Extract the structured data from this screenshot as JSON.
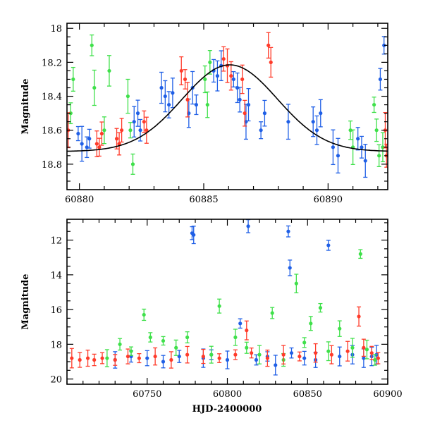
{
  "chart_data": [
    {
      "type": "scatter",
      "panel": "top",
      "xlabel": "",
      "ylabel": "Magnitude",
      "xlim": [
        60879.5,
        60892.4
      ],
      "ylim": [
        18.95,
        17.97
      ],
      "y_inverted": true,
      "xticks": [
        60880,
        60885,
        60890
      ],
      "yticks": [
        18,
        18.2,
        18.4,
        18.6,
        18.8
      ],
      "xtick_labels": [
        "60880",
        "60885",
        "60890"
      ],
      "ytick_labels": [
        "18",
        "18.2",
        "18.4",
        "18.6",
        "18.8"
      ],
      "grid": false,
      "legend": "none",
      "series_colors": {
        "blue": "#1f5fe6",
        "green": "#3fe04a",
        "red": "#ff3b2a",
        "model": "#000000"
      },
      "series": [
        {
          "color": "blue",
          "points": [
            [
              60879.95,
              18.62
            ],
            [
              60880.1,
              18.68
            ],
            [
              60880.3,
              18.7
            ],
            [
              60880.4,
              18.65
            ],
            [
              60882.2,
              18.55
            ],
            [
              60882.35,
              18.5
            ],
            [
              60882.45,
              18.6
            ],
            [
              60883.3,
              18.35
            ],
            [
              60883.45,
              18.4
            ],
            [
              60883.6,
              18.45
            ],
            [
              60883.75,
              18.38
            ],
            [
              60884.4,
              18.5
            ],
            [
              60884.55,
              18.35
            ],
            [
              60884.7,
              18.45
            ],
            [
              60885.4,
              18.25
            ],
            [
              60885.55,
              18.28
            ],
            [
              60885.7,
              18.22
            ],
            [
              60886.2,
              18.3
            ],
            [
              60886.35,
              18.35
            ],
            [
              60886.45,
              18.42
            ],
            [
              60886.7,
              18.55
            ],
            [
              60886.8,
              18.45
            ],
            [
              60887.3,
              18.6
            ],
            [
              60887.45,
              18.5
            ],
            [
              60888.4,
              18.55
            ],
            [
              60889.4,
              18.55
            ],
            [
              60889.55,
              18.6
            ],
            [
              60889.7,
              18.5
            ],
            [
              60890.2,
              18.7
            ],
            [
              60890.4,
              18.75
            ],
            [
              60891.2,
              18.65
            ],
            [
              60891.35,
              18.7
            ],
            [
              60891.5,
              18.78
            ],
            [
              60892.1,
              18.3
            ],
            [
              60892.25,
              18.1
            ]
          ]
        },
        {
          "color": "green",
          "points": [
            [
              60879.65,
              18.5
            ],
            [
              60879.75,
              18.3
            ],
            [
              60880.5,
              18.1
            ],
            [
              60880.6,
              18.35
            ],
            [
              60881.0,
              18.6
            ],
            [
              60881.2,
              18.25
            ],
            [
              60881.95,
              18.4
            ],
            [
              60882.05,
              18.6
            ],
            [
              60882.15,
              18.8
            ],
            [
              60885.05,
              18.3
            ],
            [
              60885.15,
              18.45
            ],
            [
              60885.25,
              18.2
            ],
            [
              60890.9,
              18.6
            ],
            [
              60891.0,
              18.7
            ],
            [
              60891.85,
              18.45
            ],
            [
              60891.95,
              18.6
            ],
            [
              60892.05,
              18.75
            ],
            [
              60892.2,
              18.7
            ]
          ]
        },
        {
          "color": "red",
          "points": [
            [
              60879.55,
              18.6
            ],
            [
              60880.7,
              18.68
            ],
            [
              60880.8,
              18.7
            ],
            [
              60880.9,
              18.62
            ],
            [
              60881.5,
              18.65
            ],
            [
              60881.6,
              18.68
            ],
            [
              60881.7,
              18.6
            ],
            [
              60882.6,
              18.55
            ],
            [
              60882.7,
              18.6
            ],
            [
              60884.1,
              18.25
            ],
            [
              60884.25,
              18.3
            ],
            [
              60884.35,
              18.42
            ],
            [
              60885.8,
              18.18
            ],
            [
              60885.95,
              18.22
            ],
            [
              60886.1,
              18.28
            ],
            [
              60886.55,
              18.3
            ],
            [
              60886.65,
              18.5
            ],
            [
              60887.6,
              18.1
            ],
            [
              60887.7,
              18.2
            ],
            [
              60892.3,
              18.6
            ],
            [
              60892.35,
              18.75
            ]
          ]
        },
        {
          "color": "model",
          "line": true,
          "center": 60886.05,
          "mag_peak": 18.215,
          "mag_base": 18.725,
          "width_days": 2.7
        }
      ]
    },
    {
      "type": "scatter",
      "panel": "bottom",
      "xlabel": "HJD-2400000",
      "ylabel": "Magnitude",
      "xlim": [
        60700,
        60900
      ],
      "ylim": [
        20.3,
        10.8
      ],
      "y_inverted": true,
      "xticks": [
        60750,
        60800,
        60850,
        60900
      ],
      "yticks": [
        12,
        14,
        16,
        18,
        20
      ],
      "xtick_labels": [
        "60750",
        "60800",
        "60850",
        "60900"
      ],
      "ytick_labels": [
        "12",
        "14",
        "16",
        "18",
        "20"
      ],
      "grid": false,
      "legend": "none",
      "series": [
        {
          "color": "blue",
          "points": [
            [
              60730,
              18.9
            ],
            [
              60740,
              18.7
            ],
            [
              60750,
              18.8
            ],
            [
              60760,
              19.0
            ],
            [
              60770,
              18.7
            ],
            [
              60778,
              11.6
            ],
            [
              60779,
              11.7
            ],
            [
              60785,
              18.8
            ],
            [
              60790,
              18.6
            ],
            [
              60800,
              18.9
            ],
            [
              60808,
              16.8
            ],
            [
              60813,
              11.2
            ],
            [
              60818,
              18.9
            ],
            [
              60825,
              18.7
            ],
            [
              60830,
              19.2
            ],
            [
              60838,
              11.5
            ],
            [
              60839,
              13.6
            ],
            [
              60840,
              18.5
            ],
            [
              60848,
              18.8
            ],
            [
              60855,
              18.9
            ],
            [
              60863,
              12.3
            ],
            [
              60870,
              18.7
            ],
            [
              60878,
              18.6
            ],
            [
              60885,
              18.8
            ],
            [
              60890,
              18.7
            ],
            [
              60893,
              18.6
            ]
          ]
        },
        {
          "color": "green",
          "points": [
            [
              60725,
              18.8
            ],
            [
              60733,
              18.0
            ],
            [
              60740,
              18.4
            ],
            [
              60748,
              16.3
            ],
            [
              60752,
              17.6
            ],
            [
              60760,
              17.8
            ],
            [
              60768,
              18.2
            ],
            [
              60775,
              17.6
            ],
            [
              60790,
              18.6
            ],
            [
              60795,
              15.8
            ],
            [
              60805,
              17.6
            ],
            [
              60812,
              18.2
            ],
            [
              60820,
              18.6
            ],
            [
              60828,
              16.2
            ],
            [
              60835,
              18.9
            ],
            [
              60843,
              14.5
            ],
            [
              60848,
              17.9
            ],
            [
              60852,
              16.8
            ],
            [
              60858,
              15.9
            ],
            [
              60863,
              18.4
            ],
            [
              60870,
              17.1
            ],
            [
              60878,
              18.2
            ],
            [
              60883,
              12.8
            ],
            [
              60887,
              18.3
            ],
            [
              60892,
              18.9
            ]
          ]
        },
        {
          "color": "red",
          "points": [
            [
              60703,
              18.8
            ],
            [
              60708,
              18.9
            ],
            [
              60713,
              18.8
            ],
            [
              60717,
              18.9
            ],
            [
              60722,
              18.8
            ],
            [
              60730,
              18.9
            ],
            [
              60738,
              18.7
            ],
            [
              60745,
              18.8
            ],
            [
              60755,
              18.7
            ],
            [
              60765,
              18.9
            ],
            [
              60775,
              18.6
            ],
            [
              60785,
              18.7
            ],
            [
              60795,
              18.8
            ],
            [
              60805,
              18.6
            ],
            [
              60812,
              17.2
            ],
            [
              60815,
              18.5
            ],
            [
              60825,
              18.8
            ],
            [
              60835,
              18.6
            ],
            [
              60845,
              18.7
            ],
            [
              60855,
              18.5
            ],
            [
              60865,
              18.6
            ],
            [
              60875,
              18.4
            ],
            [
              60882,
              16.4
            ],
            [
              60885,
              18.2
            ],
            [
              60890,
              18.5
            ],
            [
              60894,
              18.8
            ]
          ]
        }
      ]
    }
  ]
}
